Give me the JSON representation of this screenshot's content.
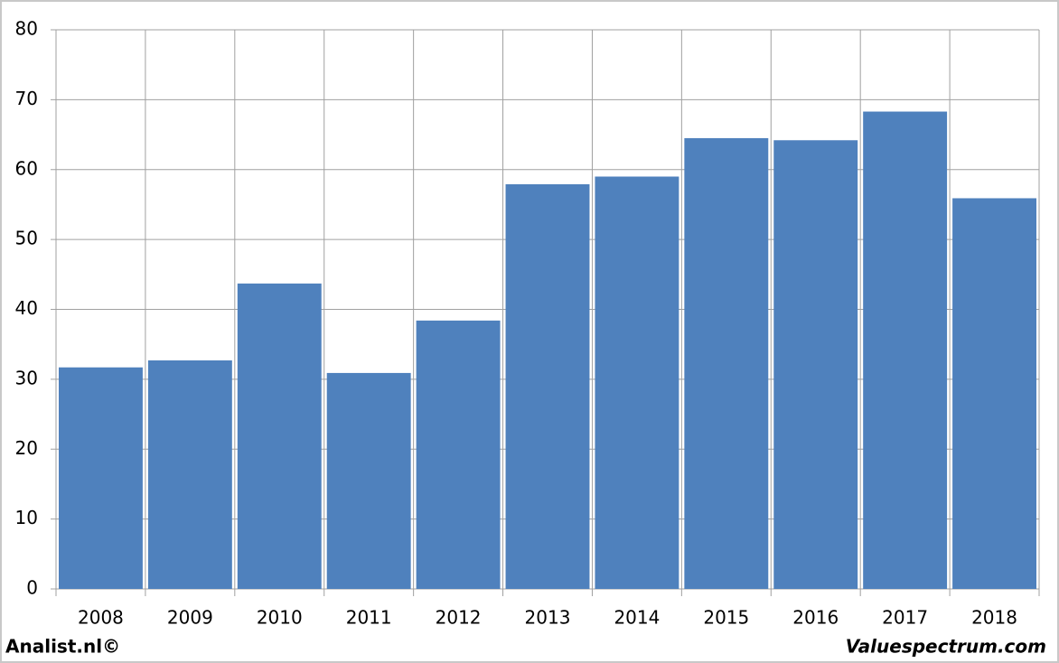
{
  "chart_data": {
    "type": "bar",
    "categories": [
      "2008",
      "2009",
      "2010",
      "2011",
      "2012",
      "2013",
      "2014",
      "2015",
      "2016",
      "2017",
      "2018"
    ],
    "values": [
      31.7,
      32.7,
      43.7,
      30.9,
      38.4,
      57.9,
      59.0,
      64.5,
      64.2,
      68.3,
      55.9
    ],
    "color": "#4f81bd",
    "ylim": [
      0,
      80
    ],
    "yticks": [
      0,
      10,
      20,
      30,
      40,
      50,
      60,
      70,
      80
    ],
    "grid": true,
    "annotations": [
      "Analist.nl©",
      "Valuespectrum.com"
    ]
  }
}
